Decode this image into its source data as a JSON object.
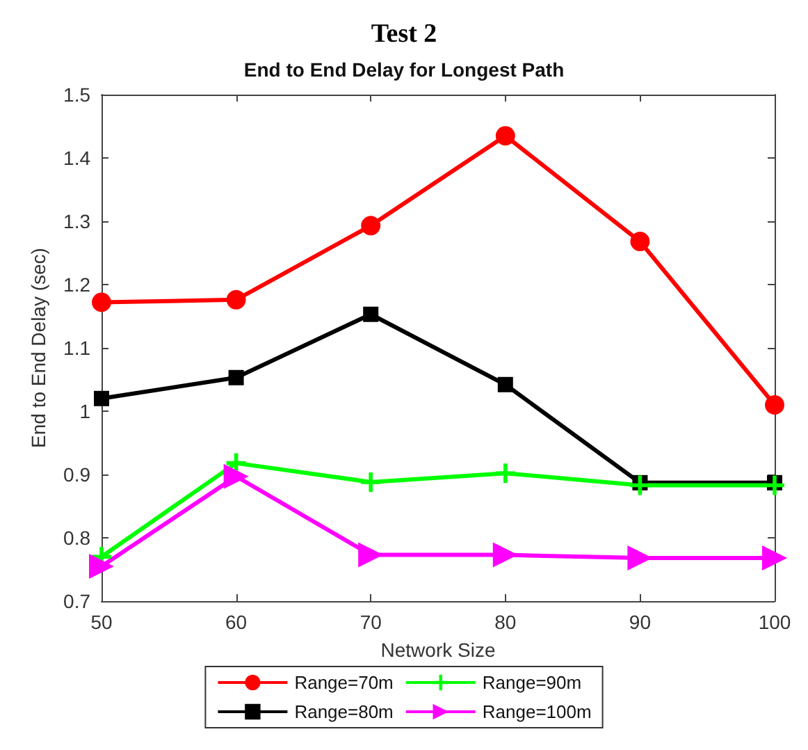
{
  "chart_data": {
    "type": "line",
    "title": "Test 2",
    "subtitle": "End to End Delay for Longest Path",
    "xlabel": "Network Size",
    "ylabel": "End to End Delay (sec)",
    "x": [
      50,
      60,
      70,
      80,
      90,
      100
    ],
    "series": [
      {
        "name": "Range=70m",
        "color": "#ff0000",
        "marker": "circle",
        "values": [
          1.172,
          1.176,
          1.293,
          1.435,
          1.268,
          1.01
        ]
      },
      {
        "name": "Range=80m",
        "color": "#000000",
        "marker": "square",
        "values": [
          1.02,
          1.053,
          1.153,
          1.042,
          0.887,
          0.887
        ]
      },
      {
        "name": "Range=90m",
        "color": "#00ff00",
        "marker": "cross",
        "values": [
          0.77,
          0.918,
          0.888,
          0.902,
          0.883,
          0.883
        ]
      },
      {
        "name": "Range=100m",
        "color": "#ff00ff",
        "marker": "triangle",
        "values": [
          0.755,
          0.897,
          0.773,
          0.773,
          0.768,
          0.768
        ]
      }
    ],
    "xlim": [
      50,
      100
    ],
    "xticks": [
      50,
      60,
      70,
      80,
      90,
      100
    ],
    "ylim": [
      0.7,
      1.5
    ],
    "yticks": [
      0.7,
      0.8,
      0.9,
      1,
      1.1,
      1.2,
      1.3,
      1.4,
      1.5
    ],
    "grid": false,
    "legend": "bottom",
    "line_style": "solid"
  }
}
